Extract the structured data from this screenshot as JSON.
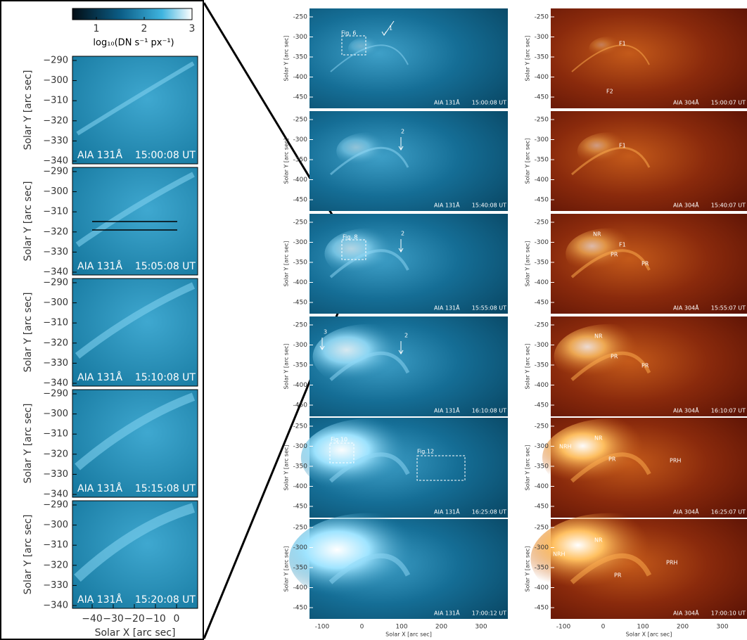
{
  "colorbar": {
    "ticks": [
      "1",
      "2",
      "3"
    ],
    "label": "log₁₀(DN s⁻¹ px⁻¹)"
  },
  "zoom": {
    "y_label": "Solar Y [arc sec]",
    "y_ticks": [
      "−290",
      "−300",
      "−310",
      "−320",
      "−330",
      "−340"
    ],
    "x_label": "Solar X [arc sec]",
    "x_ticks": [
      "−40",
      "−30",
      "−20",
      "−10",
      "0"
    ],
    "panels": [
      {
        "instrument": "AIA 131Å",
        "time": "15:00:08 UT"
      },
      {
        "instrument": "AIA 131Å",
        "time": "15:05:08 UT"
      },
      {
        "instrument": "AIA 131Å",
        "time": "15:10:08 UT"
      },
      {
        "instrument": "AIA 131Å",
        "time": "15:15:08 UT"
      },
      {
        "instrument": "AIA 131Å",
        "time": "15:20:08 UT"
      }
    ]
  },
  "aia131": {
    "y_label": "Solar Y [arc sec]",
    "y_ticks": [
      "-250",
      "-300",
      "-350",
      "-400",
      "-450"
    ],
    "x_label": "Solar X [arc sec]",
    "x_ticks": [
      "-100",
      "0",
      "100",
      "200",
      "300"
    ],
    "panels": [
      {
        "instrument": "AIA 131Å",
        "time": "15:00:08 UT",
        "annotations": [
          "Fig. 6",
          "1"
        ]
      },
      {
        "instrument": "AIA 131Å",
        "time": "15:40:08 UT",
        "annotations": [
          "2"
        ]
      },
      {
        "instrument": "AIA 131Å",
        "time": "15:55:08 UT",
        "annotations": [
          "Fig. 8",
          "2"
        ]
      },
      {
        "instrument": "AIA 131Å",
        "time": "16:10:08 UT",
        "annotations": [
          "3",
          "2"
        ]
      },
      {
        "instrument": "AIA 131Å",
        "time": "16:25:08 UT",
        "annotations": [
          "Fig.10",
          "Fig.12"
        ]
      },
      {
        "instrument": "AIA 131Å",
        "time": "17:00:12 UT",
        "annotations": []
      }
    ]
  },
  "aia304": {
    "y_label": "Solar Y [arc sec]",
    "y_ticks": [
      "-250",
      "-300",
      "-350",
      "-400",
      "-450"
    ],
    "x_label": "Solar X [arc sec]",
    "x_ticks": [
      "-100",
      "0",
      "100",
      "200",
      "300"
    ],
    "panels": [
      {
        "instrument": "AIA 304Å",
        "time": "15:00:07 UT",
        "annotations": [
          "F1",
          "F2"
        ]
      },
      {
        "instrument": "AIA 304Å",
        "time": "15:40:07 UT",
        "annotations": [
          "F1"
        ]
      },
      {
        "instrument": "AIA 304Å",
        "time": "15:55:07 UT",
        "annotations": [
          "NR",
          "F1",
          "PR",
          "PR"
        ]
      },
      {
        "instrument": "AIA 304Å",
        "time": "16:10:07 UT",
        "annotations": [
          "NR",
          "PR",
          "PR"
        ]
      },
      {
        "instrument": "AIA 304Å",
        "time": "16:25:07 UT",
        "annotations": [
          "NRH",
          "NR",
          "PR",
          "PRH"
        ]
      },
      {
        "instrument": "AIA 304Å",
        "time": "17:00:10 UT",
        "annotations": [
          "NRH",
          "NR",
          "PR",
          "PRH"
        ]
      }
    ]
  }
}
